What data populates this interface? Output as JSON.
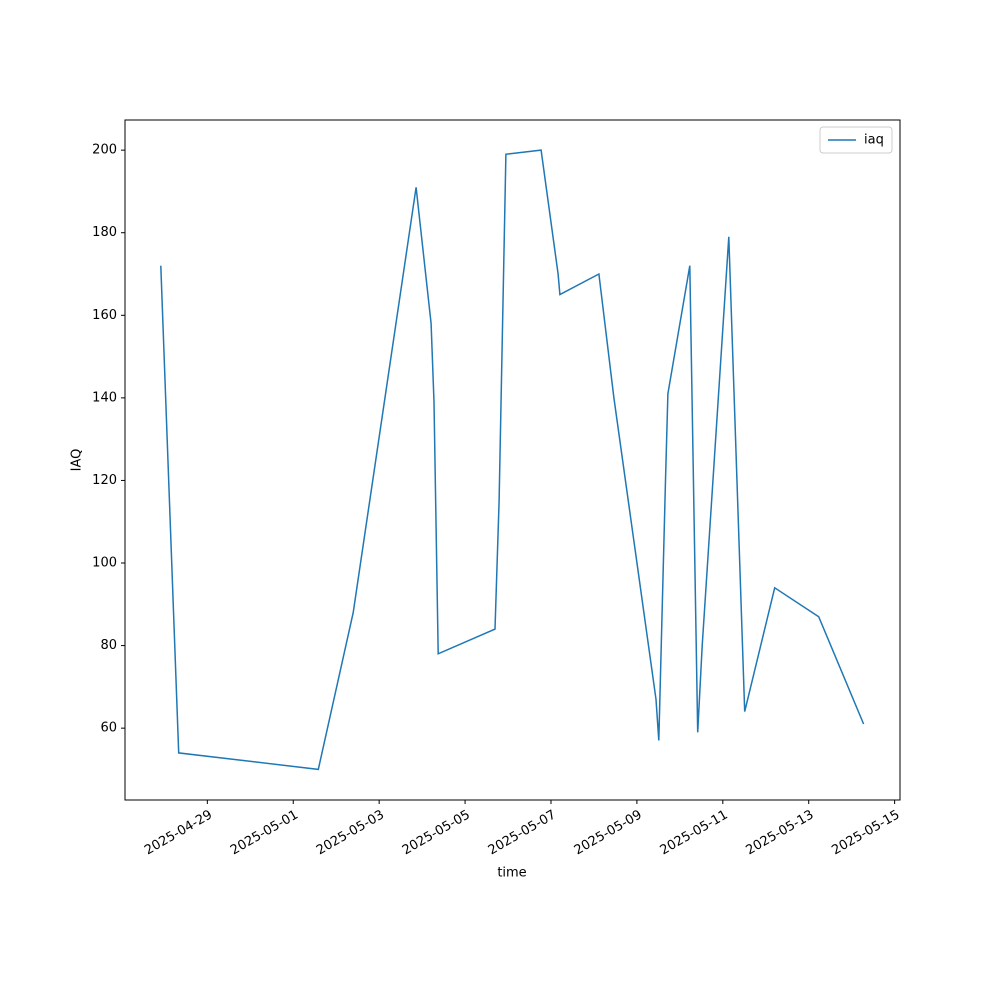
{
  "chart_data": {
    "type": "line",
    "x_label": "time",
    "y_label": "IAQ",
    "x": [
      "2025-04-27 22:00",
      "2025-04-28 08:00",
      "2025-05-01 14:00",
      "2025-05-02 09:30",
      "2025-05-03 20:40",
      "2025-05-04 05:00",
      "2025-05-04 06:40",
      "2025-05-04 09:00",
      "2025-05-05 16:45",
      "2025-05-05 19:00",
      "2025-05-05 22:50",
      "2025-05-06 18:30",
      "2025-05-07 04:00",
      "2025-05-07 05:00",
      "2025-05-08 02:45",
      "2025-05-08 11:10",
      "2025-05-09 10:40",
      "2025-05-09 12:15",
      "2025-05-09 16:00",
      "2025-05-09 17:20",
      "2025-05-10 05:35",
      "2025-05-10 10:00",
      "2025-05-10 12:30",
      "2025-05-11 03:20",
      "2025-05-11 12:15",
      "2025-05-12 05:00",
      "2025-05-13 05:35",
      "2025-05-14 06:40"
    ],
    "series": [
      {
        "name": "iaq",
        "color": "#1f77b4",
        "values": [
          172,
          54,
          50,
          88,
          191,
          158,
          139,
          78,
          84,
          115,
          199,
          200,
          170,
          165,
          170,
          140,
          67,
          57,
          120,
          141,
          172,
          59,
          80,
          179,
          64,
          94,
          87,
          61
        ]
      }
    ],
    "xlim": [
      "2025-04-27 02:00",
      "2025-05-15 03:00"
    ],
    "xticks": [
      "2025-04-29",
      "2025-05-01",
      "2025-05-03",
      "2025-05-05",
      "2025-05-07",
      "2025-05-09",
      "2025-05-11",
      "2025-05-13",
      "2025-05-15"
    ],
    "ylim": [
      42.6,
      207.3
    ],
    "yticks": [
      60,
      80,
      100,
      120,
      140,
      160,
      180,
      200
    ],
    "legend": "upper right"
  }
}
